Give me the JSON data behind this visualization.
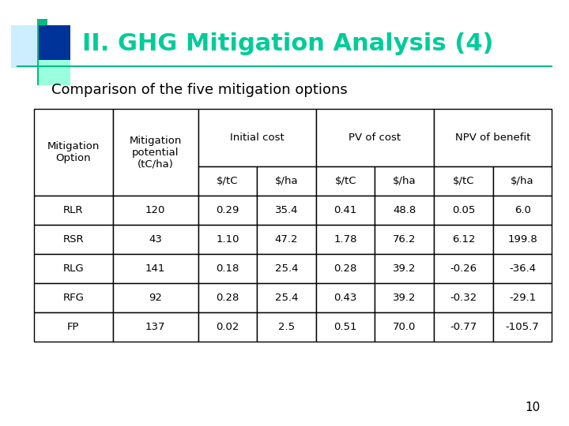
{
  "title": "II. GHG Mitigation Analysis (4)",
  "subtitle": "Comparison of the five mitigation options",
  "title_color": "#00CC99",
  "title_fontsize": 22,
  "subtitle_fontsize": 13,
  "page_number": "10",
  "table": {
    "rows": [
      [
        "RLR",
        "120",
        "0.29",
        "35.4",
        "0.41",
        "48.8",
        "0.05",
        "6.0"
      ],
      [
        "RSR",
        "43",
        "1.10",
        "47.2",
        "1.78",
        "76.2",
        "6.12",
        "199.8"
      ],
      [
        "RLG",
        "141",
        "0.18",
        "25.4",
        "0.28",
        "39.2",
        "-0.26",
        "-36.4"
      ],
      [
        "RFG",
        "92",
        "0.28",
        "25.4",
        "0.43",
        "39.2",
        "-0.32",
        "-29.1"
      ],
      [
        "FP",
        "137",
        "0.02",
        "2.5",
        "0.51",
        "70.0",
        "-0.77",
        "-105.7"
      ]
    ],
    "col_widths": [
      1.2,
      1.3,
      0.9,
      0.9,
      0.9,
      0.9,
      0.9,
      0.9
    ],
    "border_color": "#000000"
  },
  "decoration": {
    "light_blue_color": "#CCEEFF",
    "dark_blue_color": "#003399",
    "teal_color": "#00BB88",
    "light_teal_color": "#99FFDD"
  }
}
